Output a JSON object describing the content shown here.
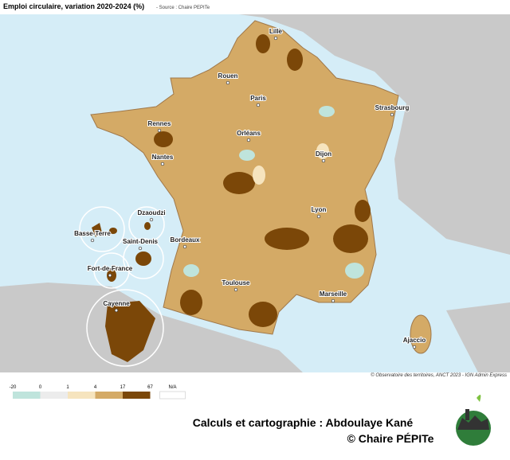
{
  "header": {
    "title": "Emploi circulaire, variation 2020-2024 (%)",
    "source": "- Source : Chaire PEPITe"
  },
  "map": {
    "cities": [
      {
        "label": "Lille"
      },
      {
        "label": "Rouen"
      },
      {
        "label": "Paris"
      },
      {
        "label": "Strasbourg"
      },
      {
        "label": "Rennes"
      },
      {
        "label": "Orléans"
      },
      {
        "label": "Nantes"
      },
      {
        "label": "Dijon"
      },
      {
        "label": "Lyon"
      },
      {
        "label": "Dzaoudzi"
      },
      {
        "label": "Basse-Terre"
      },
      {
        "label": "Saint-Denis"
      },
      {
        "label": "Bordeaux"
      },
      {
        "label": "Fort-de-France"
      },
      {
        "label": "Toulouse"
      },
      {
        "label": "Marseille"
      },
      {
        "label": "Cayenne"
      },
      {
        "label": "Ajaccio"
      }
    ],
    "copyright": "© Observatoire des territoires, ANCT 2023 - IGN Admin Express"
  },
  "legend": {
    "breaks": [
      -20,
      0,
      1,
      4,
      17,
      67
    ],
    "colors": [
      "#bfe4dc",
      "#ececec",
      "#f6e4be",
      "#d4aa66",
      "#7b4708"
    ],
    "na_label": "N/A",
    "na_color": "#ffffff"
  },
  "credits": [
    "Calculs et cartographie : Abdoulaye Kané",
    "© Chaire PÉPITe"
  ]
}
